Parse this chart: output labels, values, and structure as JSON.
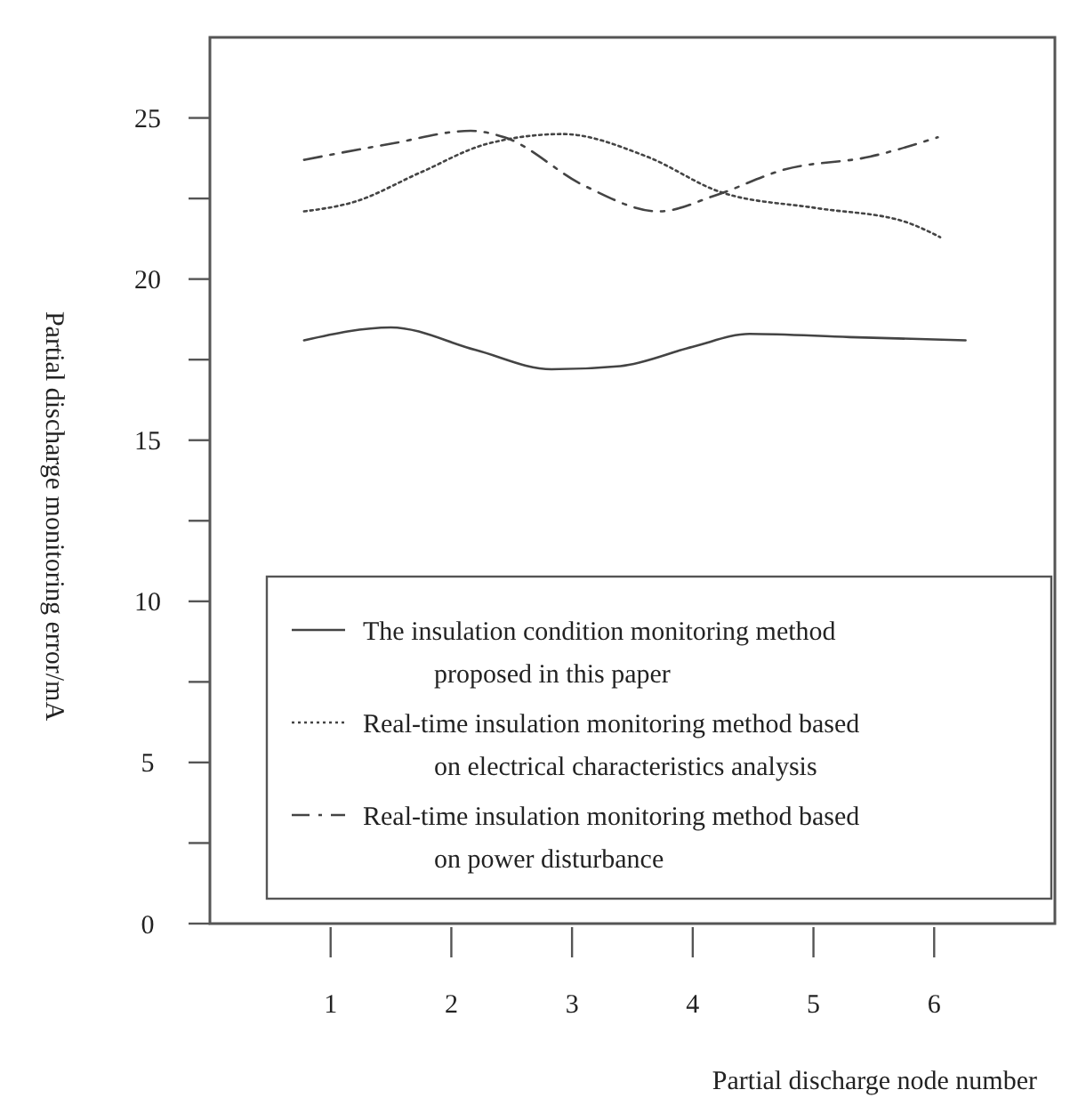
{
  "chart_data": {
    "type": "line",
    "xlabel": "Partial discharge node number",
    "ylabel": "Partial discharge monitoring error/mA",
    "xlim": [
      0,
      7
    ],
    "xticks": [
      1,
      2,
      3,
      4,
      5,
      6
    ],
    "ylim": [
      0,
      27.5
    ],
    "yticks": [
      0,
      {
        "value": 2.5,
        "label": null
      },
      5,
      {
        "value": 7.5,
        "label": null
      },
      10,
      {
        "value": 12.5,
        "label": null
      },
      15,
      {
        "value": 17.5,
        "label": null
      },
      20,
      {
        "value": 22.5,
        "label": null
      },
      25
    ],
    "grid": false,
    "legend": "bottom",
    "marker": "none",
    "series": [
      {
        "name": "The insulation condition monitoring method proposed in this paper",
        "color": "#444444",
        "line_style": "solid",
        "x": [
          0.78,
          1.5,
          2.2,
          2.83,
          3.4,
          4,
          4.47,
          5.3,
          6.26
        ],
        "values": [
          18.1,
          18.5,
          17.8,
          17.2,
          17.3,
          17.9,
          18.3,
          18.2,
          18.1
        ]
      },
      {
        "name": "Real-time insulation monitoring method based on electrical characteristics analysis",
        "color": "#444444",
        "line_style": "dotted",
        "x": [
          0.78,
          1.2,
          1.74,
          2.3,
          2.92,
          3.62,
          4.23,
          5.03,
          5.74,
          6.05
        ],
        "values": [
          22.1,
          22.4,
          23.3,
          24.2,
          24.5,
          23.8,
          22.7,
          22.2,
          21.8,
          21.3
        ]
      },
      {
        "name": "Real-time insulation monitoring method based on power disturbance",
        "color": "#444444",
        "line_style": "dashdot",
        "x": [
          0.78,
          1.5,
          2.16,
          2.44,
          3.1,
          3.72,
          4.19,
          4.76,
          5.47,
          6.03
        ],
        "values": [
          23.7,
          24.2,
          24.6,
          24.4,
          22.9,
          22.1,
          22.6,
          23.4,
          23.8,
          24.4
        ]
      }
    ]
  }
}
